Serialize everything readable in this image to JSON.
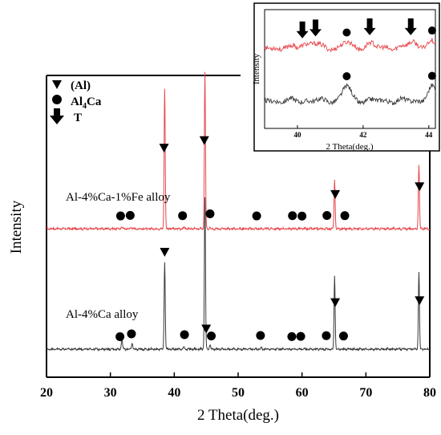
{
  "chart_data": [
    {
      "type": "line",
      "xlabel": "2 Theta(deg.)",
      "ylabel": "Intensity",
      "xlim": [
        20,
        80
      ],
      "xticks": [
        "20",
        "30",
        "40",
        "50",
        "60",
        "70",
        "80"
      ],
      "grid": false,
      "legend": {
        "placement": "top-left",
        "entries": [
          {
            "marker": "triangle-down",
            "label": "(Al)"
          },
          {
            "marker": "circle",
            "label": "Al4Ca",
            "text_main": "Al",
            "text_sub": "4",
            "text_tail": "Ca"
          },
          {
            "marker": "arrow-down",
            "label": "T"
          }
        ]
      },
      "series": [
        {
          "name": "Al-4%Ca-1%Fe alloy",
          "color": "#e8474c",
          "baseline": 0.6,
          "peaks": [
            {
              "x": 31.8,
              "y": 2
            },
            {
              "x": 33.3,
              "y": 1.5
            },
            {
              "x": 38.5,
              "y": 110
            },
            {
              "x": 41.5,
              "y": 1.2
            },
            {
              "x": 44.8,
              "y": 122
            },
            {
              "x": 45.6,
              "y": 1.5
            },
            {
              "x": 65.1,
              "y": 38
            },
            {
              "x": 78.3,
              "y": 50
            }
          ],
          "markers": [
            {
              "type": "circle",
              "x": 31.6
            },
            {
              "type": "circle",
              "x": 33.1
            },
            {
              "type": "triangle-down",
              "x": 38.4
            },
            {
              "type": "circle",
              "x": 41.3
            },
            {
              "type": "triangle-down",
              "x": 44.7
            },
            {
              "type": "circle",
              "x": 45.6
            },
            {
              "type": "circle",
              "x": 52.9
            },
            {
              "type": "circle",
              "x": 58.5
            },
            {
              "type": "circle",
              "x": 60.0
            },
            {
              "type": "circle",
              "x": 63.9
            },
            {
              "type": "triangle-down",
              "x": 65.2
            },
            {
              "type": "circle",
              "x": 66.7
            },
            {
              "type": "triangle-down",
              "x": 78.4
            }
          ]
        },
        {
          "name": "Al-4%Ca alloy",
          "color": "#3a3a3a",
          "baseline": 0.6,
          "peaks": [
            {
              "x": 31.8,
              "y": 9
            },
            {
              "x": 33.4,
              "y": 5
            },
            {
              "x": 38.5,
              "y": 68
            },
            {
              "x": 41.5,
              "y": 2
            },
            {
              "x": 44.8,
              "y": 118
            },
            {
              "x": 45.6,
              "y": 3
            },
            {
              "x": 53.6,
              "y": 1.2
            },
            {
              "x": 65.1,
              "y": 57
            },
            {
              "x": 78.3,
              "y": 60
            }
          ],
          "markers": [
            {
              "type": "circle",
              "x": 31.5
            },
            {
              "type": "circle",
              "x": 33.3
            },
            {
              "type": "triangle-down",
              "x": 38.5
            },
            {
              "type": "circle",
              "x": 41.6
            },
            {
              "type": "triangle-down",
              "x": 45.0
            },
            {
              "type": "circle",
              "x": 45.8
            },
            {
              "type": "circle",
              "x": 53.5
            },
            {
              "type": "circle",
              "x": 58.4
            },
            {
              "type": "circle",
              "x": 59.8
            },
            {
              "type": "circle",
              "x": 63.8
            },
            {
              "type": "triangle-down",
              "x": 65.2
            },
            {
              "type": "circle",
              "x": 66.5
            },
            {
              "type": "triangle-down",
              "x": 78.4
            }
          ]
        }
      ]
    },
    {
      "type": "line",
      "xlabel": "2 Theta(deg.)",
      "ylabel": "Intensity",
      "xlim": [
        39,
        44.2
      ],
      "xticks": [
        "40",
        "42",
        "44"
      ],
      "grid": false,
      "series": [
        {
          "name": "",
          "color": "#e8474c",
          "baseline": 0.9,
          "peaks": [
            {
              "x": 40.2,
              "y": 0.9
            },
            {
              "x": 40.5,
              "y": 1.1
            },
            {
              "x": 41.5,
              "y": 1.3
            },
            {
              "x": 42.2,
              "y": 1.0
            },
            {
              "x": 43.5,
              "y": 1.6
            },
            {
              "x": 44.05,
              "y": 1.4
            }
          ],
          "markers": [
            {
              "type": "arrow-down",
              "x": 40.15
            },
            {
              "type": "arrow-down",
              "x": 40.55
            },
            {
              "type": "circle",
              "x": 41.5
            },
            {
              "type": "arrow-down",
              "x": 42.2
            },
            {
              "type": "arrow-down",
              "x": 43.45
            },
            {
              "type": "circle",
              "x": 44.1
            }
          ]
        },
        {
          "name": "",
          "color": "#3a3a3a",
          "baseline": 0.9,
          "peaks": [
            {
              "x": 41.5,
              "y": 3.6
            },
            {
              "x": 44.1,
              "y": 3.2
            }
          ],
          "markers": [
            {
              "type": "circle",
              "x": 41.5
            },
            {
              "type": "circle",
              "x": 44.1
            }
          ]
        }
      ]
    }
  ]
}
